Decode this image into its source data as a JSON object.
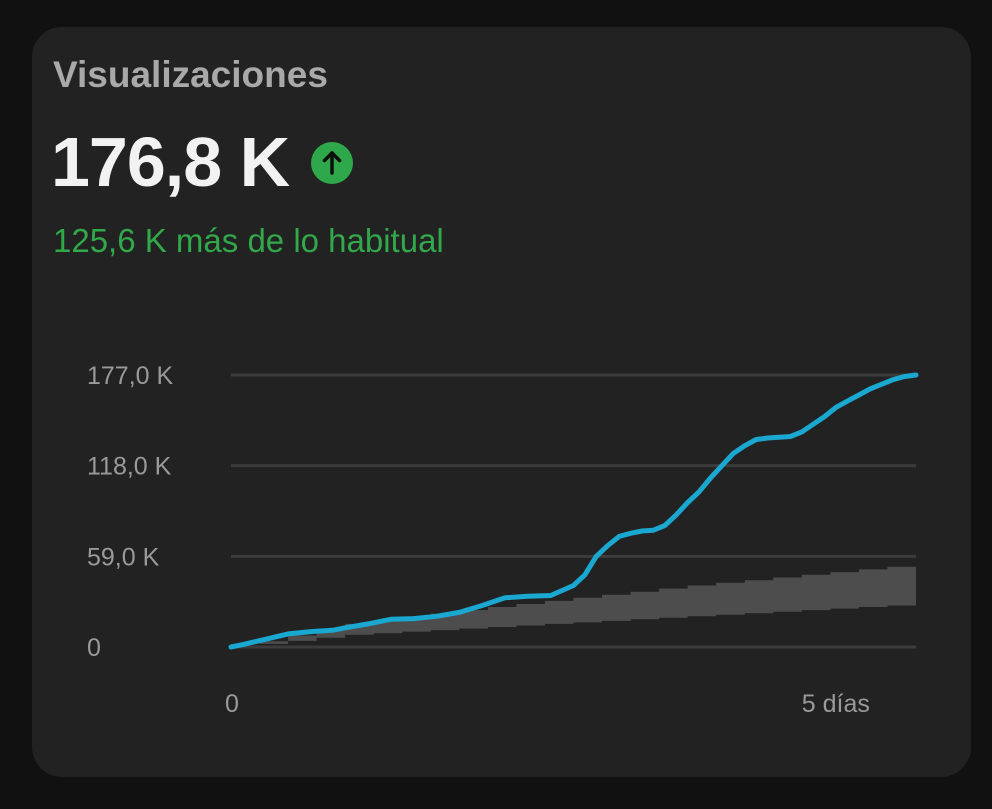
{
  "card": {
    "title": "Visualizaciones",
    "value": "176,8 K",
    "trend_icon": "arrow-up-icon",
    "delta_text": "125,6 K más de lo habitual",
    "colors": {
      "background": "#222222",
      "accent_line": "#1aa7d0",
      "positive": "#31a84a",
      "band": "#4d4d4d"
    }
  },
  "chart_data": {
    "type": "line",
    "title": "",
    "xlabel": "",
    "ylabel": "",
    "y_tick_labels": [
      "0",
      "59,0 K",
      "118,0 K",
      "177,0 K"
    ],
    "y_ticks": [
      0,
      59000,
      118000,
      177000
    ],
    "x_tick_labels": [
      "0",
      "5 días"
    ],
    "x_ticks": [
      0,
      5
    ],
    "xlim": [
      0,
      6
    ],
    "ylim": [
      0,
      177000
    ],
    "grid": true,
    "series": [
      {
        "values_x": [
          0,
          0.1,
          0.3,
          0.5,
          0.7,
          0.9,
          1.0,
          1.2,
          1.4,
          1.6,
          1.8,
          2.0,
          2.2,
          2.4,
          2.6,
          2.8,
          3.0,
          3.1,
          3.2,
          3.3,
          3.4,
          3.5,
          3.6,
          3.7,
          3.8,
          3.9,
          4.0,
          4.1,
          4.2,
          4.3,
          4.4,
          4.5,
          4.6,
          4.7,
          4.8,
          4.9,
          5.0,
          5.1,
          5.2,
          5.3,
          5.4,
          5.5,
          5.6,
          5.7,
          5.8,
          5.9,
          6.0
        ],
        "values_y": [
          0,
          1500,
          5000,
          8500,
          10000,
          11000,
          12500,
          15000,
          18000,
          18500,
          20000,
          22500,
          27000,
          32000,
          33000,
          33500,
          40000,
          47000,
          59000,
          66000,
          72000,
          74000,
          75500,
          76000,
          79000,
          86000,
          94000,
          101000,
          110000,
          118000,
          126000,
          131000,
          135000,
          136000,
          136500,
          137000,
          140000,
          145000,
          150000,
          156000,
          160000,
          164000,
          168000,
          171000,
          174000,
          176000,
          177000
        ]
      }
    ],
    "band": {
      "x": [
        0,
        1,
        2,
        3,
        4,
        5,
        6
      ],
      "low": [
        0,
        8000,
        12000,
        16000,
        20000,
        24000,
        28000
      ],
      "high": [
        0,
        15000,
        24000,
        32000,
        40000,
        47000,
        54000
      ]
    }
  }
}
